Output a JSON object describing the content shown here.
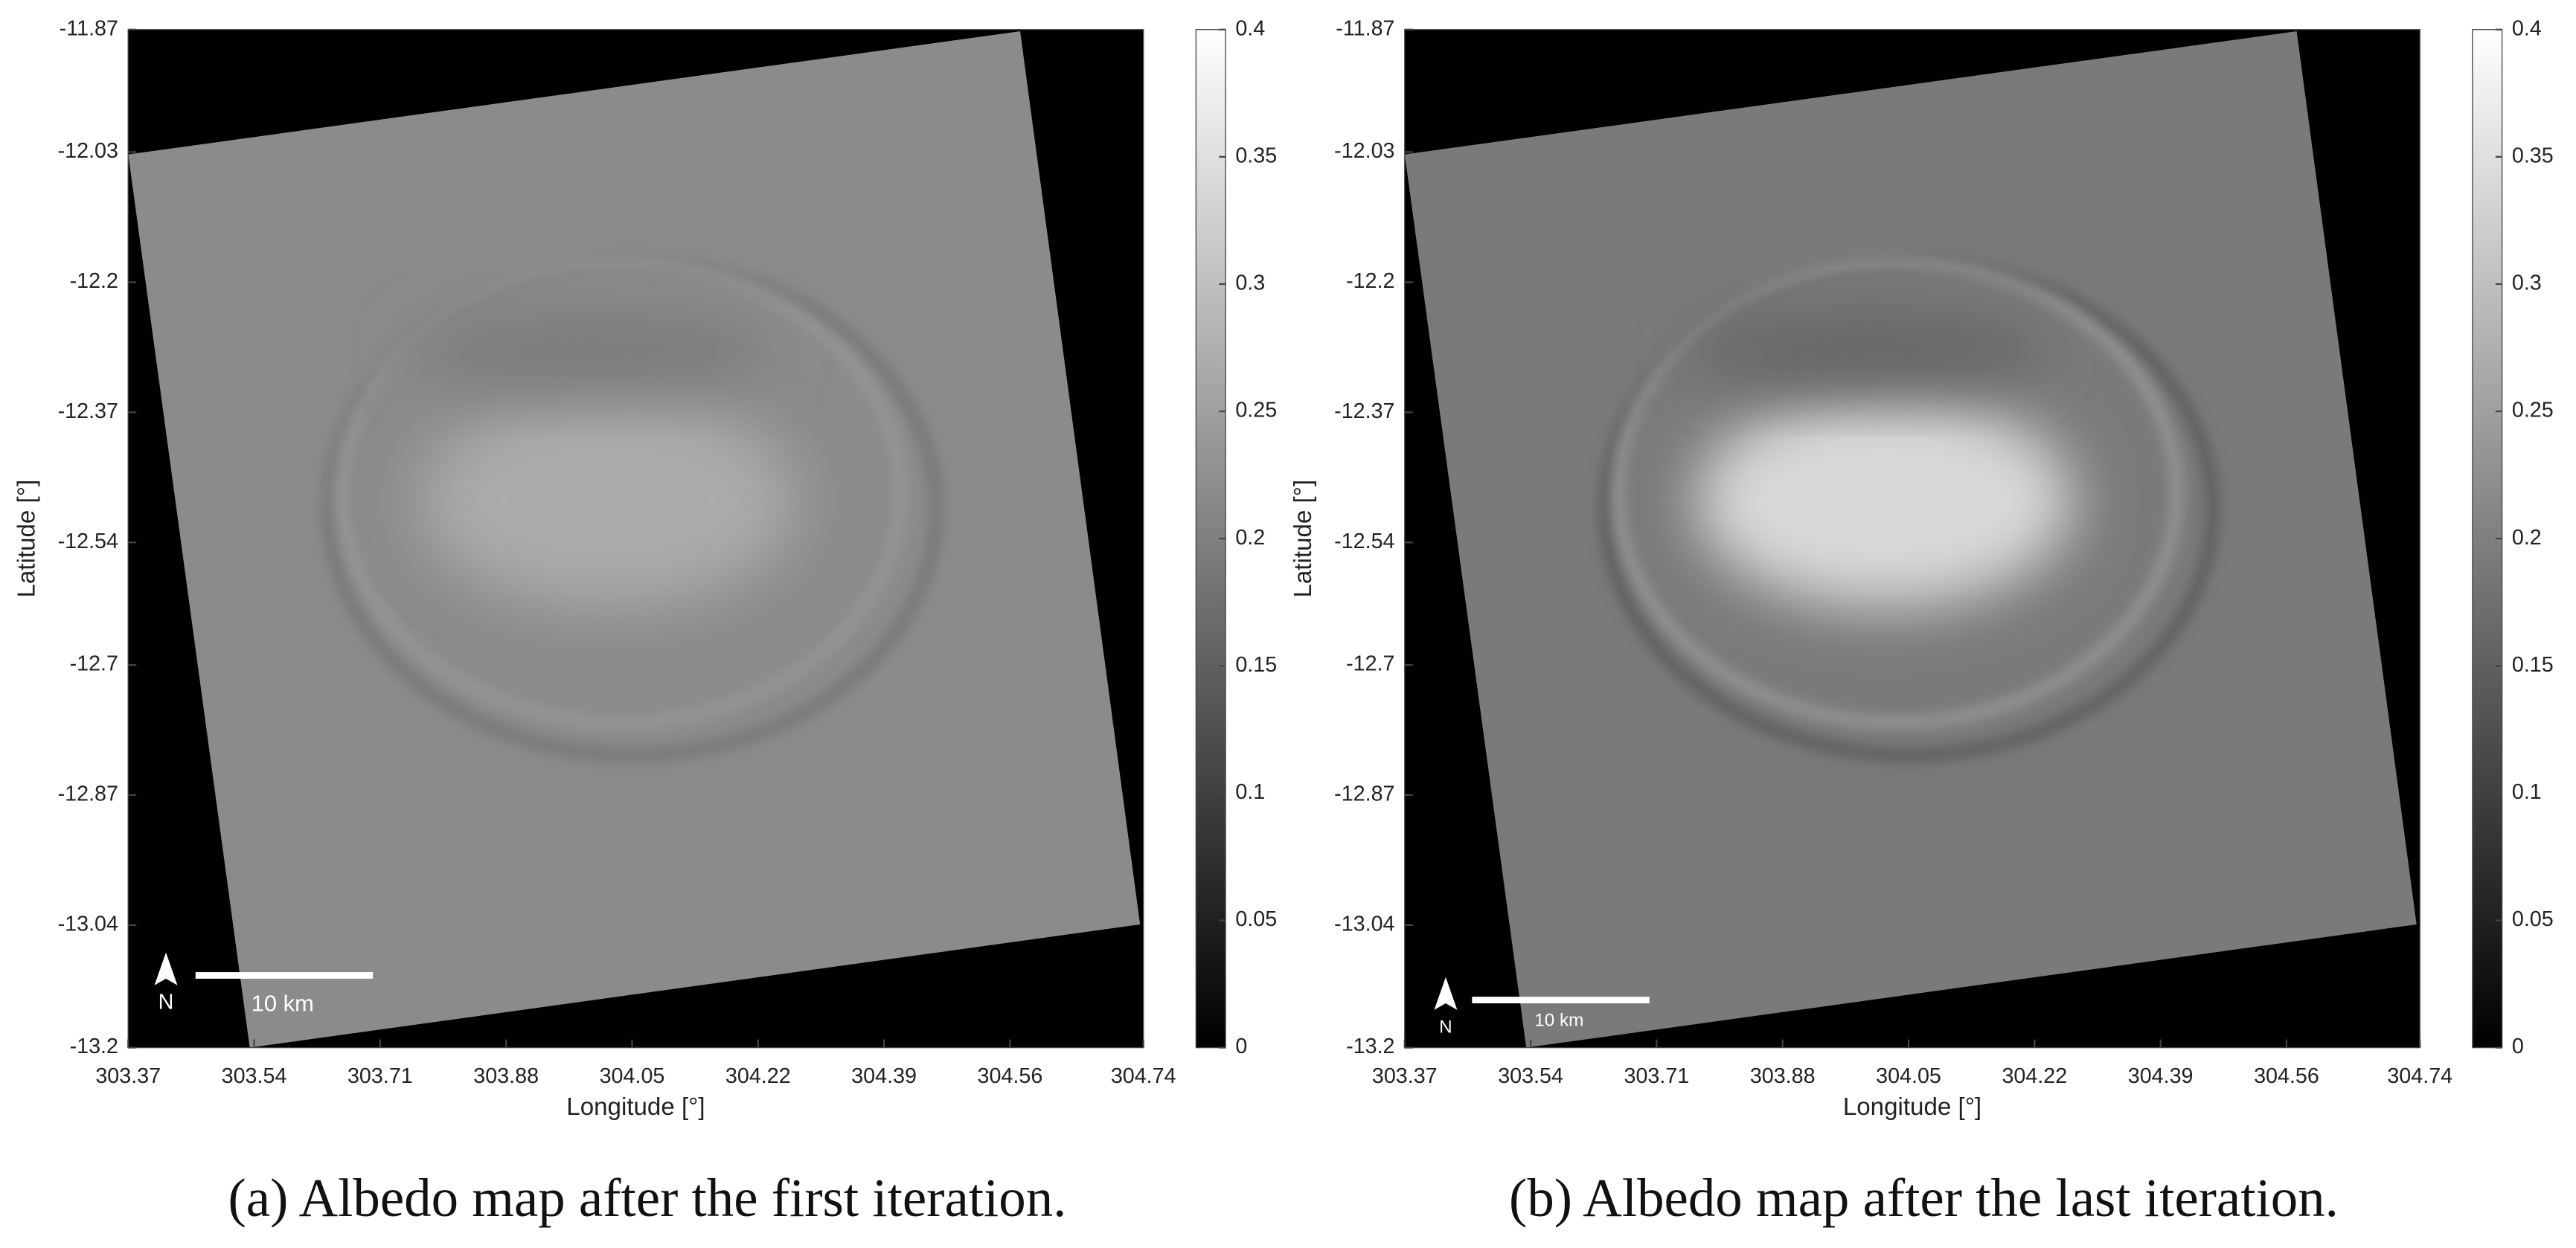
{
  "chart_data": [
    {
      "type": "map",
      "xlabel": "Longitude [°]",
      "ylabel": "Latitude [°]",
      "xlim": [
        303.37,
        304.74
      ],
      "xticks": [
        303.37,
        303.54,
        303.71,
        303.88,
        304.05,
        304.22,
        304.39,
        304.56,
        304.74
      ],
      "ylim": [
        -13.2,
        -11.87
      ],
      "yticks": [
        -11.87,
        -12.03,
        -12.2,
        -12.37,
        -12.54,
        -12.7,
        -12.87,
        -13.04,
        -13.2
      ],
      "clim": [
        0,
        0.4
      ],
      "cticks": [
        0,
        0.05,
        0.1,
        0.15,
        0.2,
        0.25,
        0.3,
        0.35,
        0.4
      ],
      "north_label": "N",
      "scalebar_label": "10 km",
      "caption": "(a) Albedo map after the first iteration."
    },
    {
      "type": "map",
      "xlabel": "Longitude [°]",
      "ylabel": "Latitude [°]",
      "xlim": [
        303.37,
        304.74
      ],
      "xticks": [
        303.37,
        303.54,
        303.71,
        303.88,
        304.05,
        304.22,
        304.39,
        304.56,
        304.74
      ],
      "ylim": [
        -13.2,
        -11.87
      ],
      "yticks": [
        -11.87,
        -12.03,
        -12.2,
        -12.37,
        -12.54,
        -12.7,
        -12.87,
        -13.04,
        -13.2
      ],
      "clim": [
        0,
        0.4
      ],
      "cticks": [
        0,
        0.05,
        0.1,
        0.15,
        0.2,
        0.25,
        0.3,
        0.35,
        0.4
      ],
      "north_label": "N",
      "scalebar_label": "10 km",
      "caption": "(b) Albedo map after the last iteration."
    }
  ]
}
